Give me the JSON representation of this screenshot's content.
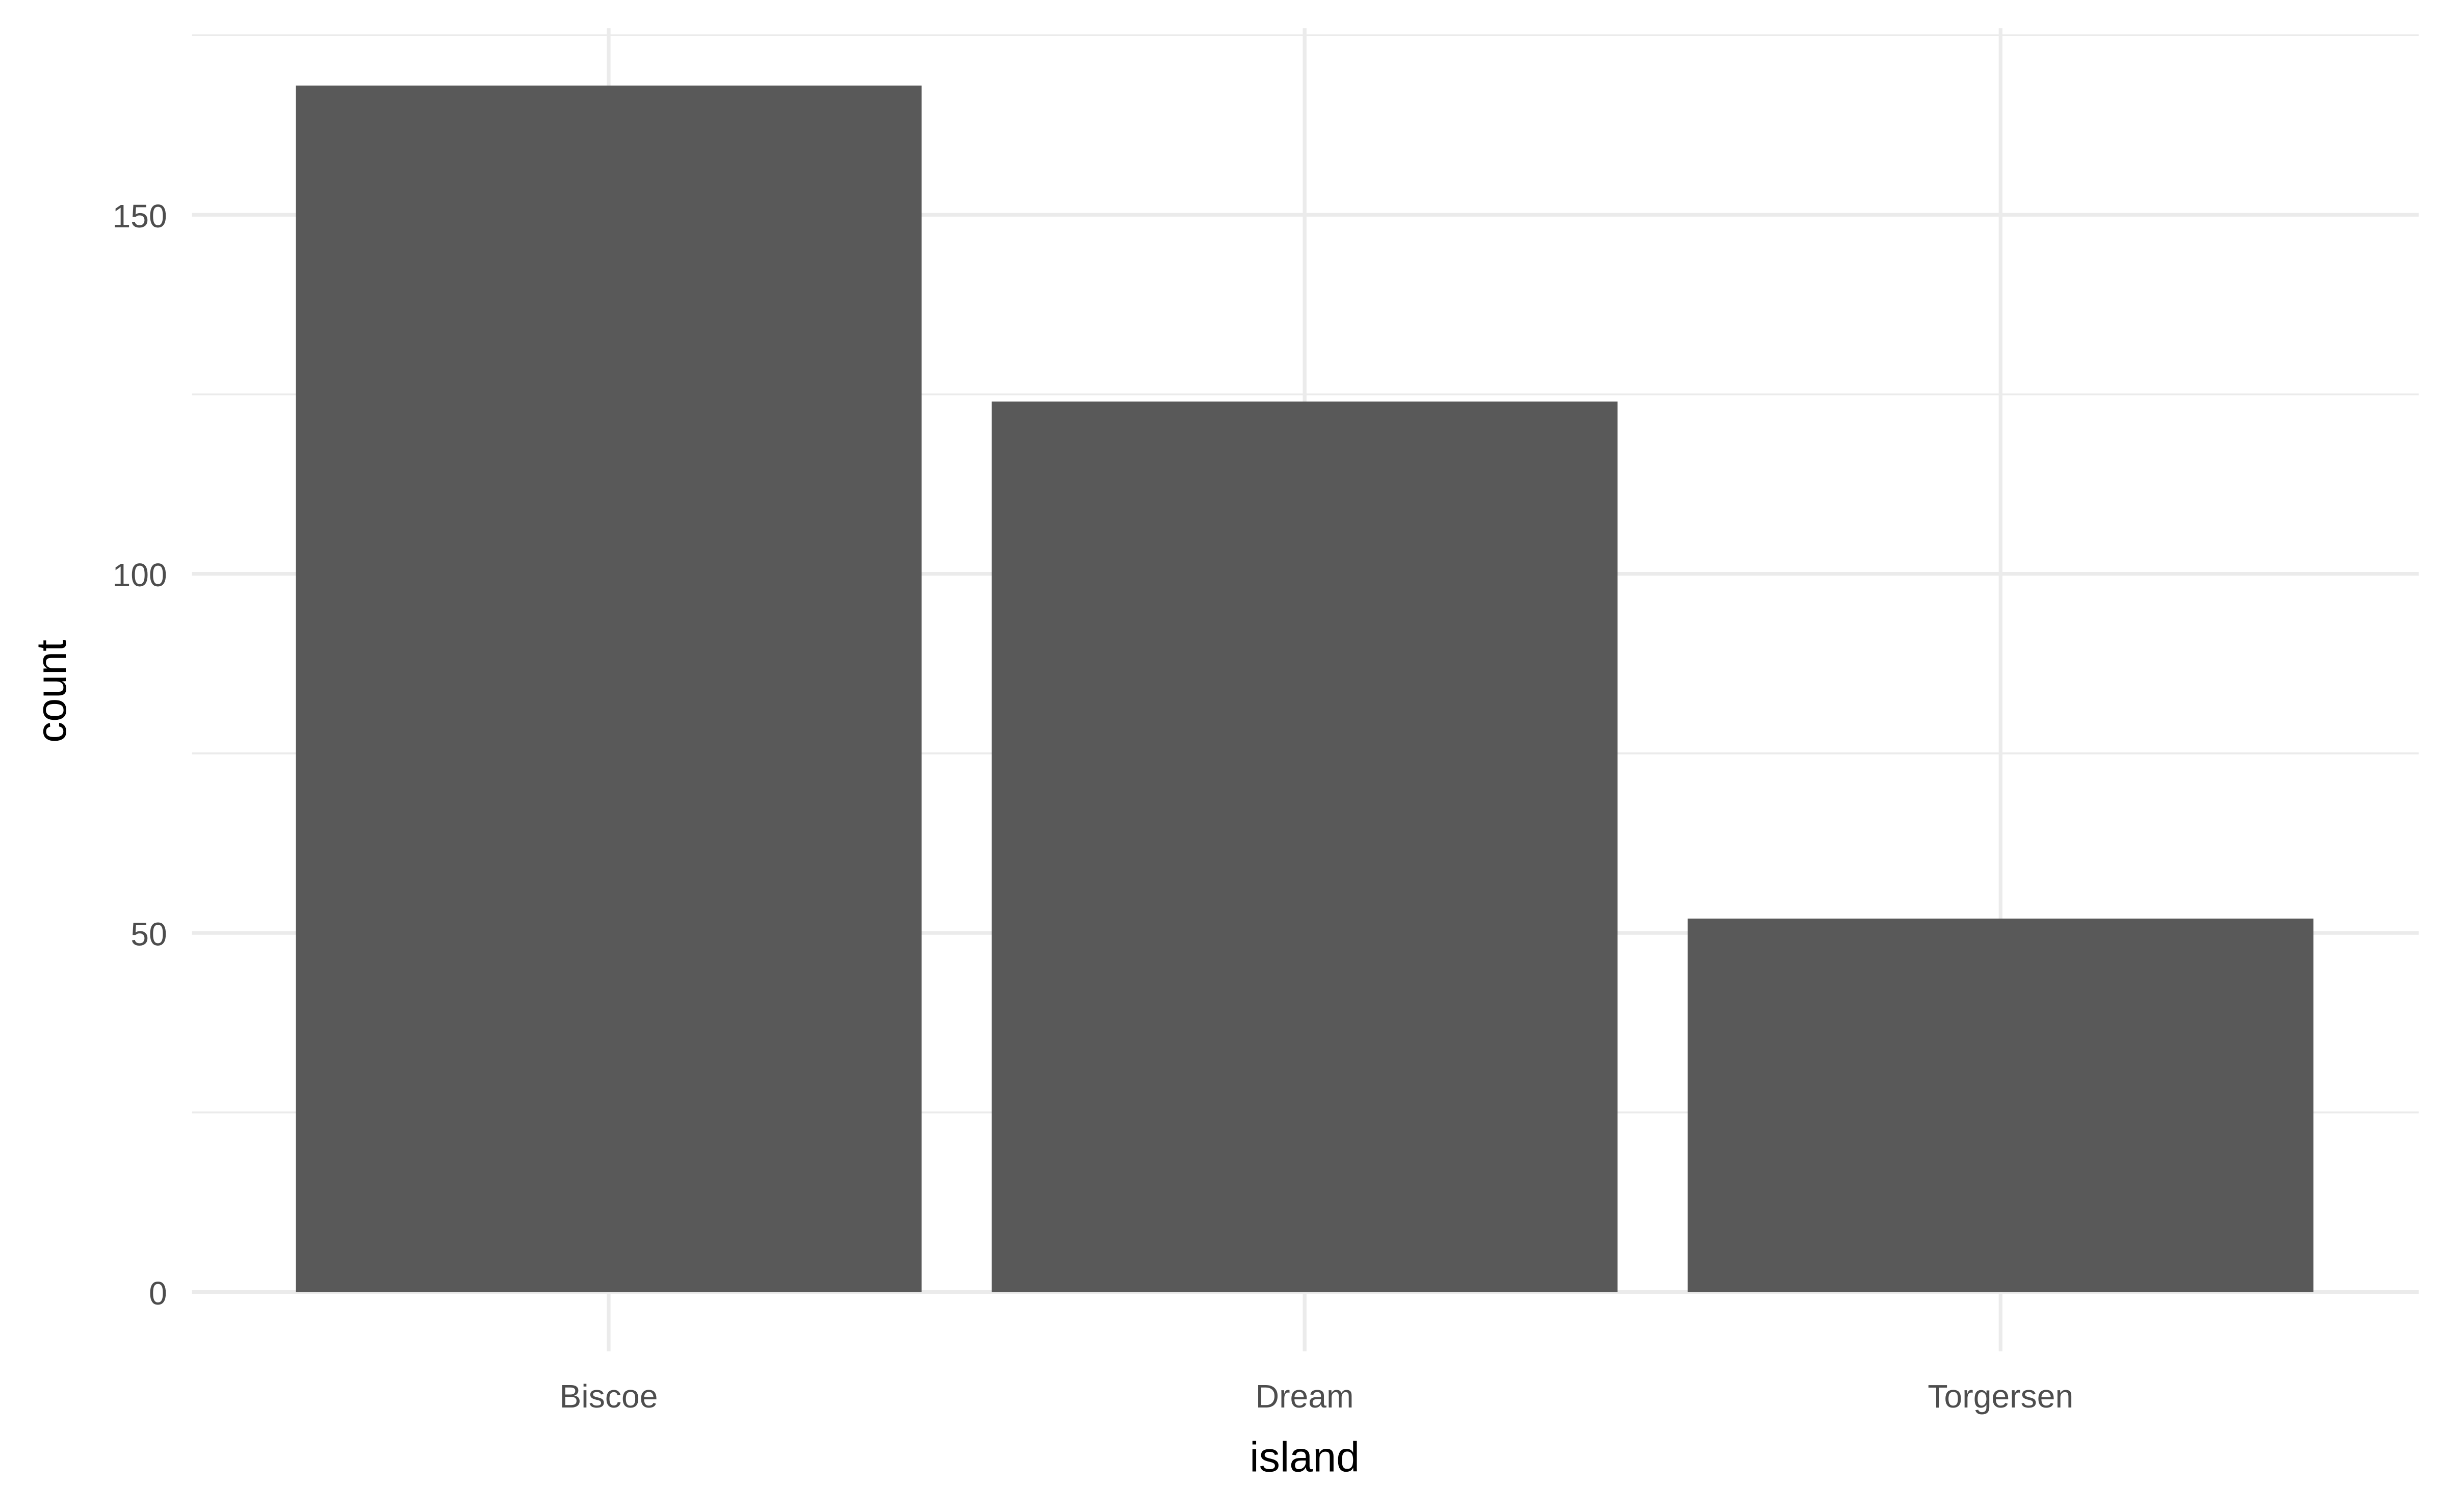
{
  "chart_data": {
    "type": "bar",
    "title": "",
    "xlabel": "island",
    "ylabel": "count",
    "categories": [
      "Biscoe",
      "Dream",
      "Torgersen"
    ],
    "values": [
      168,
      124,
      52
    ],
    "ylim": [
      0,
      176
    ],
    "yticks": [
      0,
      50,
      100,
      150
    ],
    "ytick_labels": [
      "0",
      "50",
      "100",
      "150"
    ],
    "grid": true,
    "bar_color": "#595959",
    "grid_color": "#ebebeb",
    "legend": "none"
  }
}
